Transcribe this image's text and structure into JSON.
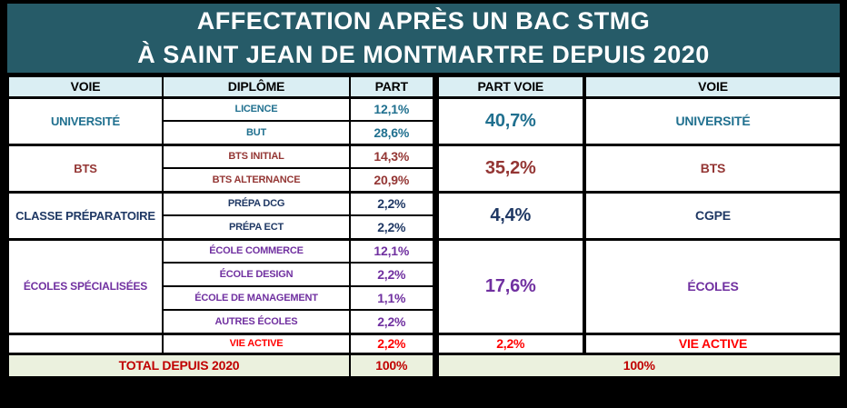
{
  "title": {
    "line1": "AFFECTATION APRÈS UN BAC STMG",
    "line2": "À SAINT JEAN DE MONTMARTRE DEPUIS 2020"
  },
  "table": {
    "headers": {
      "voie": "VOIE",
      "diplome": "DIPLÔME",
      "part": "PART",
      "part_voie": "PART VOIE",
      "voie_right": "VOIE"
    },
    "groups": [
      {
        "voie": "UNIVERSITÉ",
        "rows": [
          {
            "diplome": "LICENCE",
            "part": "12,1%"
          },
          {
            "diplome": "BUT",
            "part": "28,6%"
          }
        ],
        "part_voie": "40,7%",
        "voie_right": "UNIVERSITÉ"
      },
      {
        "voie": "BTS",
        "rows": [
          {
            "diplome": "BTS INITIAL",
            "part": "14,3%"
          },
          {
            "diplome": "BTS ALTERNANCE",
            "part": "20,9%"
          }
        ],
        "part_voie": "35,2%",
        "voie_right": "BTS"
      },
      {
        "voie": "CLASSE PRÉPARATOIRE",
        "rows": [
          {
            "diplome": "PRÉPA DCG",
            "part": "2,2%"
          },
          {
            "diplome": "PRÉPA ECT",
            "part": "2,2%"
          }
        ],
        "part_voie": "4,4%",
        "voie_right": "CGPE"
      },
      {
        "voie": "ÉCOLES SPÉCIALISÉES",
        "rows": [
          {
            "diplome": "ÉCOLE COMMERCE",
            "part": "12,1%"
          },
          {
            "diplome": "ÉCOLE DESIGN",
            "part": "2,2%"
          },
          {
            "diplome": "ÉCOLE DE MANAGEMENT",
            "part": "1,1%"
          },
          {
            "diplome": "AUTRES ÉCOLES",
            "part": "2,2%"
          }
        ],
        "part_voie": "17,6%",
        "voie_right": "ÉCOLES"
      },
      {
        "voie": "",
        "rows": [
          {
            "diplome": "VIE ACTIVE",
            "part": "2,2%"
          }
        ],
        "part_voie": "2,2%",
        "voie_right": "VIE ACTIVE"
      }
    ],
    "total": {
      "label": "TOTAL DEPUIS 2020",
      "part": "100%",
      "part_voie": "100%"
    }
  },
  "colors": {
    "title_background": "#265B68",
    "title_text": "#FFFFFF",
    "header_background": "#DAEEF3",
    "universite": "#20708F",
    "bts": "#943634",
    "classe_preparatoire": "#1F3864",
    "ecoles": "#7030A0",
    "vie_active": "#FF0000",
    "total_text": "#C00000",
    "total_background": "#EBF1DE",
    "border": "#000000"
  },
  "chart_data": {
    "type": "table",
    "title": "AFFECTATION APRÈS UN BAC STMG À SAINT JEAN DE MONTMARTRE DEPUIS 2020",
    "columns": [
      "VOIE",
      "DIPLÔME",
      "PART",
      "PART VOIE",
      "VOIE"
    ],
    "rows": [
      [
        "UNIVERSITÉ",
        "LICENCE",
        12.1,
        40.7,
        "UNIVERSITÉ"
      ],
      [
        "UNIVERSITÉ",
        "BUT",
        28.6,
        40.7,
        "UNIVERSITÉ"
      ],
      [
        "BTS",
        "BTS INITIAL",
        14.3,
        35.2,
        "BTS"
      ],
      [
        "BTS",
        "BTS ALTERNANCE",
        20.9,
        35.2,
        "BTS"
      ],
      [
        "CLASSE PRÉPARATOIRE",
        "PRÉPA DCG",
        2.2,
        4.4,
        "CGPE"
      ],
      [
        "CLASSE PRÉPARATOIRE",
        "PRÉPA ECT",
        2.2,
        4.4,
        "CGPE"
      ],
      [
        "ÉCOLES SPÉCIALISÉES",
        "ÉCOLE COMMERCE",
        12.1,
        17.6,
        "ÉCOLES"
      ],
      [
        "ÉCOLES SPÉCIALISÉES",
        "ÉCOLE DESIGN",
        2.2,
        17.6,
        "ÉCOLES"
      ],
      [
        "ÉCOLES SPÉCIALISÉES",
        "ÉCOLE DE MANAGEMENT",
        1.1,
        17.6,
        "ÉCOLES"
      ],
      [
        "ÉCOLES SPÉCIALISÉES",
        "AUTRES ÉCOLES",
        2.2,
        17.6,
        "ÉCOLES"
      ],
      [
        "",
        "VIE ACTIVE",
        2.2,
        2.2,
        "VIE ACTIVE"
      ],
      [
        "TOTAL DEPUIS 2020",
        "",
        100,
        100,
        ""
      ]
    ]
  }
}
